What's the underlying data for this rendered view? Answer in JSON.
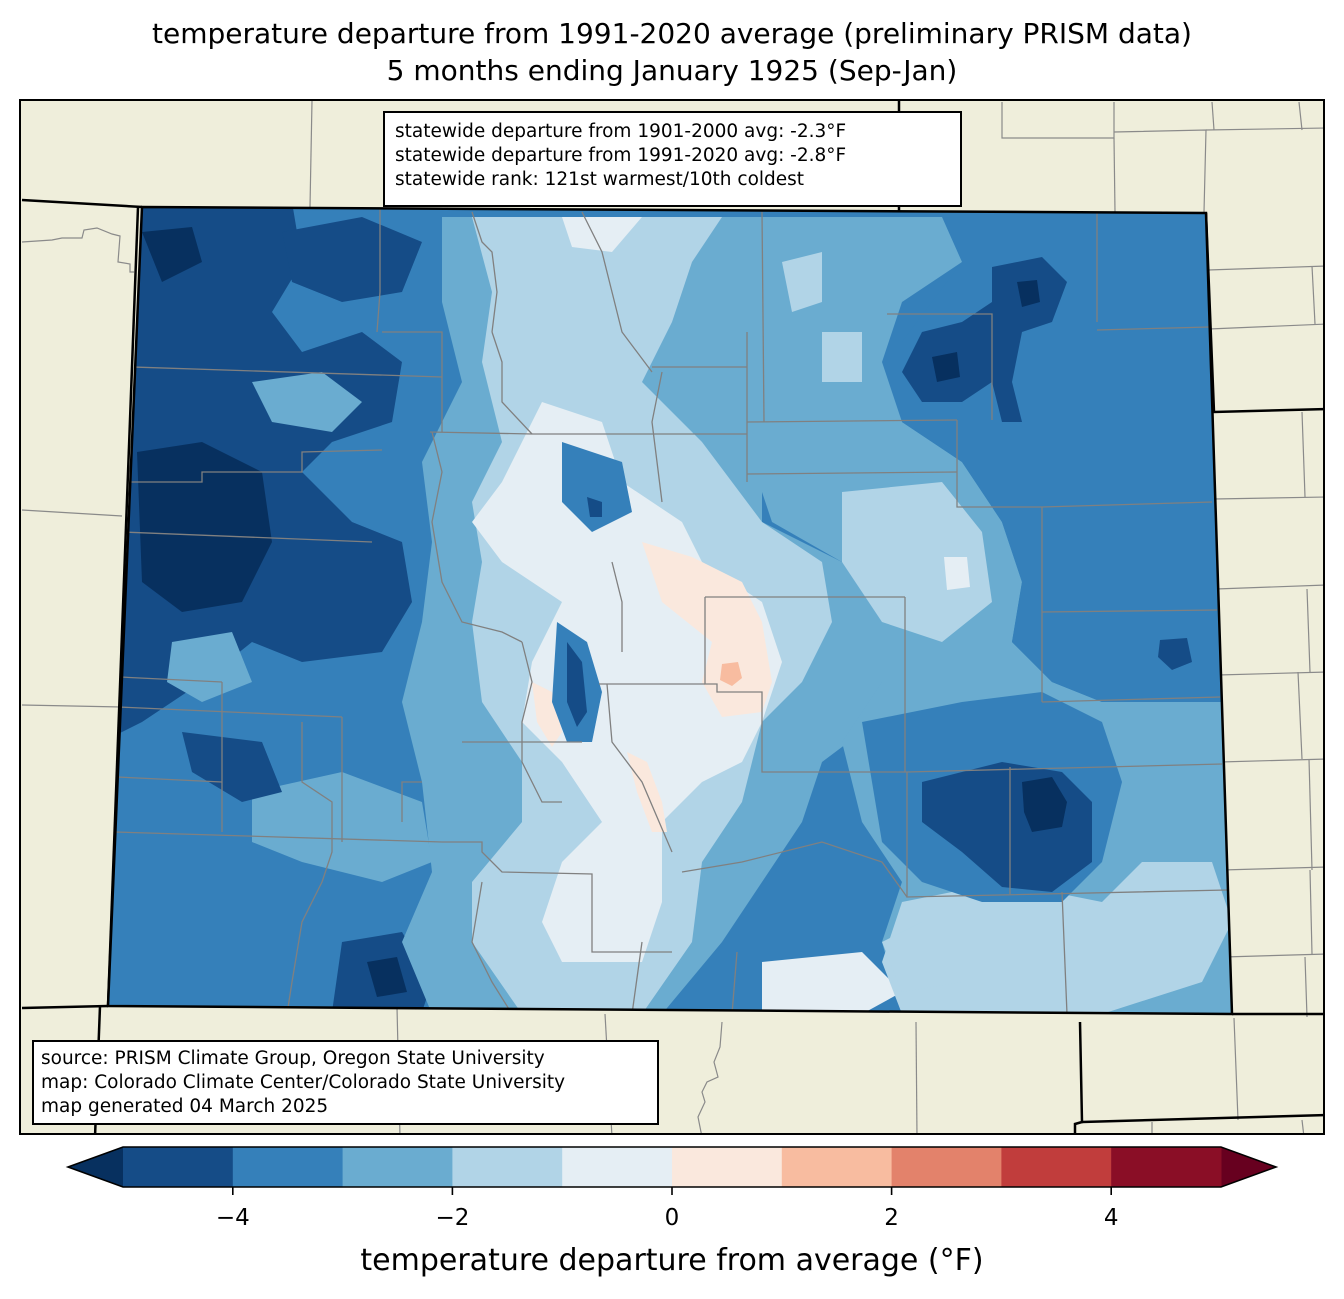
{
  "title": {
    "line1": "temperature departure from 1991-2020 average (preliminary PRISM data)",
    "line2": "5 months ending January 1925 (Sep-Jan)"
  },
  "stats": {
    "line1": "statewide departure from 1901-2000 avg: -2.3°F",
    "line2": "statewide departure from 1991-2020 avg: -2.8°F",
    "line3": "statewide rank: 121st warmest/10th coldest"
  },
  "credits": {
    "line1": "source: PRISM Climate Group, Oregon State University",
    "line2": "map: Colorado Climate Center/Colorado State University",
    "line3": "map generated 04 March 2025"
  },
  "colors": {
    "land": "#efeedb",
    "county_line": "#808080",
    "state_line": "#000000"
  },
  "chart_data": {
    "type": "heatmap",
    "title": "temperature departure from 1991-2020 average (preliminary PRISM data)",
    "subtitle": "5 months ending January 1925 (Sep-Jan)",
    "region": "Colorado",
    "colorbar": {
      "label": "temperature departure from average (°F)",
      "range": [
        -5,
        5
      ],
      "extend": "both",
      "boundaries": [
        -5,
        -4,
        -3,
        -2,
        -1,
        0,
        1,
        2,
        3,
        4,
        5
      ],
      "colors": [
        "#154c87",
        "#3580ba",
        "#6aacd0",
        "#b1d4e7",
        "#e5eef4",
        "#fae8dd",
        "#f8bca0",
        "#e3826b",
        "#c13d3c",
        "#8a0e26"
      ],
      "under_color": "#07305f",
      "over_color": "#67001f",
      "ticks": [
        -4,
        -2,
        0,
        2,
        4
      ],
      "tick_labels": [
        "−4",
        "−2",
        "0",
        "2",
        "4"
      ]
    },
    "statewide_departure_1901_2000_F": -2.3,
    "statewide_departure_1991_2020_F": -2.8,
    "rank_warmest": 121,
    "rank_coldest": 10
  }
}
